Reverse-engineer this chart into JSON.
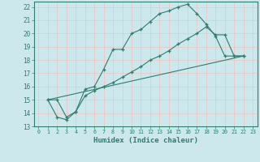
{
  "xlabel": "Humidex (Indice chaleur)",
  "background_color": "#cce8ec",
  "grid_color": "#e8c8c8",
  "line_color": "#2e7d6e",
  "xlim": [
    -0.5,
    23.5
  ],
  "ylim": [
    13,
    22.4
  ],
  "xticks": [
    0,
    1,
    2,
    3,
    4,
    5,
    6,
    7,
    8,
    9,
    10,
    11,
    12,
    13,
    14,
    15,
    16,
    17,
    18,
    19,
    20,
    21,
    22,
    23
  ],
  "yticks": [
    13,
    14,
    15,
    16,
    17,
    18,
    19,
    20,
    21,
    22
  ],
  "line1_x": [
    1,
    2,
    3,
    4,
    5,
    6,
    7,
    8,
    9,
    10,
    11,
    12,
    13,
    14,
    15,
    16,
    17,
    18,
    19,
    20,
    21,
    22
  ],
  "line1_y": [
    15.0,
    15.0,
    13.7,
    14.1,
    15.8,
    16.0,
    17.3,
    18.8,
    18.8,
    20.0,
    20.3,
    20.9,
    21.5,
    21.7,
    22.0,
    22.2,
    21.5,
    20.7,
    19.8,
    18.3,
    18.3,
    18.3
  ],
  "line2_x": [
    1,
    2,
    3,
    4,
    5,
    6,
    7,
    8,
    9,
    10,
    11,
    12,
    13,
    14,
    15,
    16,
    17,
    18,
    19,
    20,
    21,
    22
  ],
  "line2_y": [
    15.0,
    13.7,
    13.5,
    14.1,
    15.3,
    15.7,
    16.0,
    16.3,
    16.7,
    17.1,
    17.5,
    18.0,
    18.3,
    18.7,
    19.2,
    19.6,
    20.0,
    20.5,
    19.9,
    19.9,
    18.3,
    18.3
  ],
  "line3_x": [
    1,
    22
  ],
  "line3_y": [
    15.0,
    18.3
  ]
}
